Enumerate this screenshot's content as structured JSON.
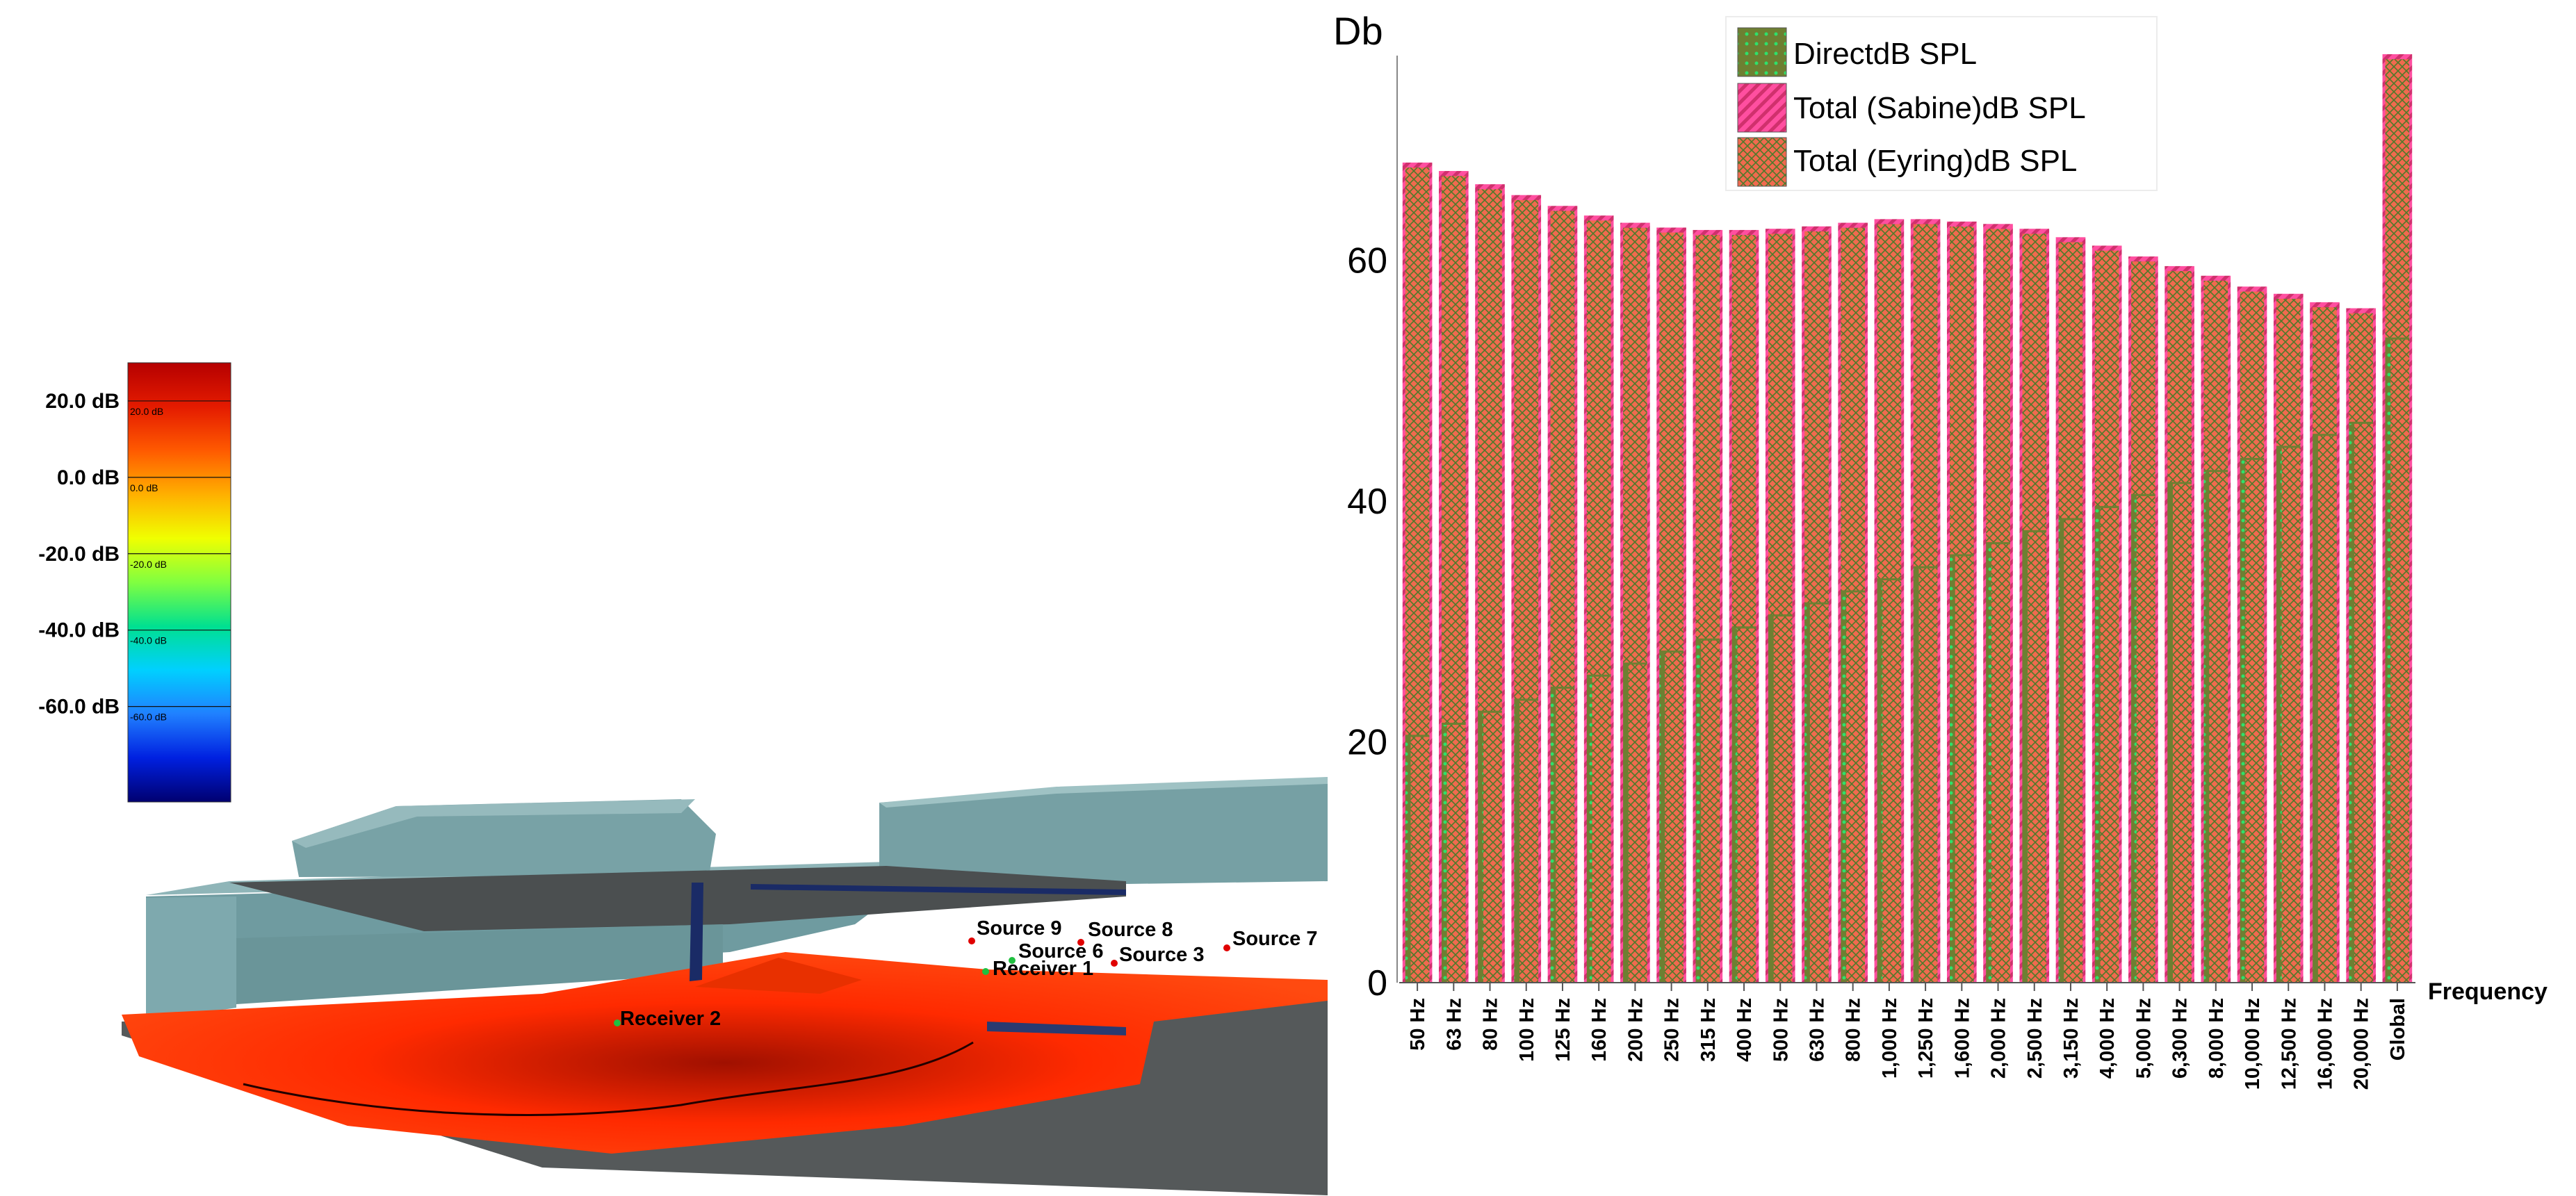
{
  "colorbar": {
    "ticks": [
      "20.0 dB",
      "0.0 dB",
      "-20.0 dB",
      "-40.0 dB",
      "-60.0 dB"
    ],
    "inner_ticks": [
      "20.0 dB",
      "0.0 dB",
      "-20.0 dB",
      "-40.0 dB",
      "-60.0 dB"
    ],
    "stops": [
      "#b50000",
      "#e41b00",
      "#ff5a00",
      "#ffb000",
      "#f0ff00",
      "#80ff40",
      "#00e090",
      "#00d0ff",
      "#2080ff",
      "#0020e0",
      "#000070"
    ]
  },
  "scene": {
    "labels": [
      "Source 9",
      "Source 8",
      "Source 6",
      "Source 3",
      "Source 7",
      "Receiver 1",
      "Receiver 2"
    ]
  },
  "chart_data": {
    "type": "bar",
    "title": "",
    "ylabel": "Db",
    "xlabel": "Frequency",
    "ylim": [
      0,
      77
    ],
    "yticks": [
      0,
      20,
      40,
      60
    ],
    "grid": false,
    "legend_position": "top-center",
    "categories": [
      "50 Hz",
      "63 Hz",
      "80 Hz",
      "100 Hz",
      "125 Hz",
      "160 Hz",
      "200 Hz",
      "250 Hz",
      "315 Hz",
      "400 Hz",
      "500 Hz",
      "630 Hz",
      "800 Hz",
      "1,000 Hz",
      "1,250 Hz",
      "1,600 Hz",
      "2,000 Hz",
      "2,500 Hz",
      "3,150 Hz",
      "4,000 Hz",
      "5,000 Hz",
      "6,300 Hz",
      "8,000 Hz",
      "10,000 Hz",
      "12,500 Hz",
      "16,000 Hz",
      "20,000 Hz",
      "Global"
    ],
    "series": [
      {
        "name": "DirectdB SPL",
        "color": "#7a8a3a",
        "values": [
          20.5,
          21.5,
          22.5,
          23.5,
          24.5,
          25.5,
          26.5,
          27.5,
          28.5,
          29.5,
          30.5,
          31.5,
          32.5,
          33.5,
          34.5,
          35.5,
          36.5,
          37.5,
          38.5,
          39.5,
          40.5,
          41.5,
          42.5,
          43.5,
          44.5,
          45.5,
          46.5,
          53.5
        ]
      },
      {
        "name": "Total (Sabine)dB SPL",
        "color": "#e0457a",
        "values": [
          68,
          67.3,
          66.2,
          65.3,
          64.4,
          63.6,
          63,
          62.6,
          62.4,
          62.4,
          62.5,
          62.7,
          63,
          63.3,
          63.3,
          63.1,
          62.9,
          62.5,
          61.8,
          61.1,
          60.2,
          59.4,
          58.6,
          57.7,
          57.1,
          56.4,
          55.9,
          77
        ]
      },
      {
        "name": "Total (Eyring)dB SPL",
        "color": "#f06a4e",
        "values": [
          67.7,
          67,
          65.9,
          65,
          64.1,
          63.3,
          62.7,
          62.3,
          62.1,
          62.1,
          62.2,
          62.4,
          62.7,
          63,
          63,
          62.8,
          62.6,
          62.2,
          61.5,
          60.8,
          59.9,
          59.1,
          58.3,
          57.4,
          56.8,
          56.1,
          55.6,
          76.7
        ]
      }
    ]
  }
}
